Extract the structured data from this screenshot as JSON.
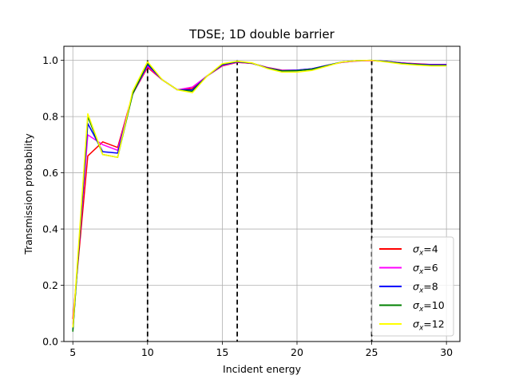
{
  "chart_data": {
    "type": "line",
    "title": "TDSE; 1D double barrier",
    "xlabel": "Incident energy",
    "ylabel": "Transmission probability",
    "xlim": [
      4.4,
      30.9
    ],
    "ylim": [
      0.0,
      1.05
    ],
    "xticks": [
      5,
      10,
      15,
      20,
      25,
      30
    ],
    "yticks": [
      0.0,
      0.2,
      0.4,
      0.6,
      0.8,
      1.0
    ],
    "xtick_labels": [
      "5",
      "10",
      "15",
      "20",
      "25",
      "30"
    ],
    "ytick_labels": [
      "0.0",
      "0.2",
      "0.4",
      "0.6",
      "0.8",
      "1.0"
    ],
    "grid": true,
    "legend_position": "lower-right",
    "x": [
      5,
      6,
      7,
      8,
      9,
      10,
      11,
      12,
      13,
      14,
      15,
      16,
      17,
      18,
      19,
      20,
      21,
      22,
      23,
      24,
      25,
      26,
      27,
      28,
      29,
      30
    ],
    "series": [
      {
        "name": "σx=4",
        "legend_main": "σ",
        "legend_sub": "x",
        "legend_value": "=4",
        "color": "#ff0000",
        "values": [
          0.08,
          0.66,
          0.71,
          0.69,
          0.88,
          0.975,
          0.93,
          0.895,
          0.9,
          0.945,
          0.98,
          0.993,
          0.989,
          0.975,
          0.965,
          0.965,
          0.97,
          0.982,
          0.993,
          0.998,
          0.999,
          0.996,
          0.991,
          0.988,
          0.985,
          0.985
        ]
      },
      {
        "name": "σx=6",
        "legend_main": "σ",
        "legend_sub": "x",
        "legend_value": "=6",
        "color": "#ff00ff",
        "values": [
          0.06,
          0.735,
          0.7,
          0.68,
          0.88,
          0.98,
          0.93,
          0.895,
          0.905,
          0.945,
          0.982,
          0.994,
          0.989,
          0.974,
          0.964,
          0.965,
          0.97,
          0.982,
          0.993,
          0.998,
          0.999,
          0.996,
          0.991,
          0.987,
          0.985,
          0.985
        ]
      },
      {
        "name": "σx=8",
        "legend_main": "σ",
        "legend_sub": "x",
        "legend_value": "=8",
        "color": "#0000ff",
        "values": [
          0.04,
          0.775,
          0.675,
          0.67,
          0.88,
          0.985,
          0.93,
          0.895,
          0.895,
          0.945,
          0.984,
          0.995,
          0.99,
          0.973,
          0.963,
          0.965,
          0.97,
          0.982,
          0.994,
          0.999,
          1.0,
          0.996,
          0.99,
          0.986,
          0.984,
          0.984
        ]
      },
      {
        "name": "σx=10",
        "legend_main": "σ",
        "legend_sub": "x",
        "legend_value": "=10",
        "color": "#008000",
        "values": [
          0.035,
          0.8,
          0.665,
          0.655,
          0.88,
          0.99,
          0.93,
          0.895,
          0.89,
          0.945,
          0.986,
          0.996,
          0.99,
          0.972,
          0.962,
          0.963,
          0.968,
          0.981,
          0.994,
          0.999,
          1.0,
          0.995,
          0.989,
          0.985,
          0.982,
          0.982
        ]
      },
      {
        "name": "σx=12",
        "legend_main": "σ",
        "legend_sub": "x",
        "legend_value": "=12",
        "color": "#ffff00",
        "values": [
          0.05,
          0.81,
          0.665,
          0.655,
          0.89,
          0.995,
          0.93,
          0.895,
          0.885,
          0.945,
          0.988,
          0.997,
          0.991,
          0.971,
          0.958,
          0.958,
          0.964,
          0.979,
          0.994,
          0.999,
          1.0,
          0.994,
          0.987,
          0.983,
          0.98,
          0.98
        ]
      }
    ],
    "vertical_markers": [
      10,
      16,
      25
    ],
    "marker_style": "dashed",
    "marker_color": "#000000"
  }
}
